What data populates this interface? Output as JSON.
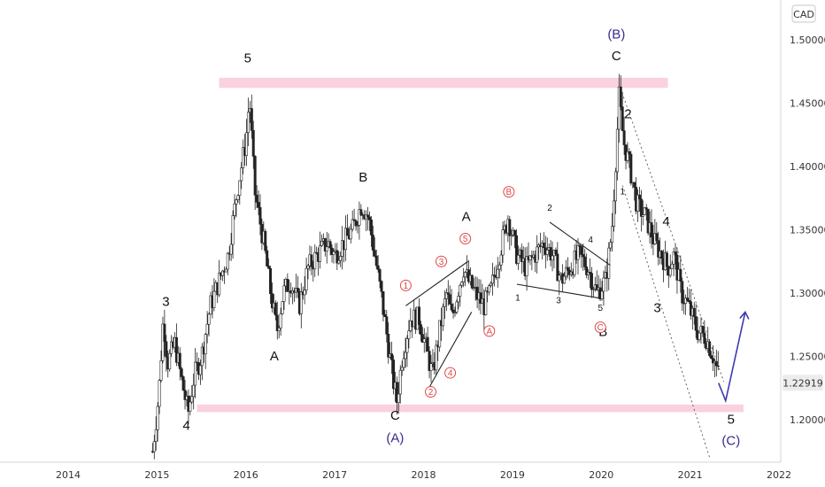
{
  "chart_data": {
    "type": "candlestick",
    "currency": "CAD",
    "last_price": "1.22919",
    "x_ticks": [
      "2014",
      "2015",
      "2016",
      "2017",
      "2018",
      "2019",
      "2020",
      "2021",
      "2022"
    ],
    "y_ticks": [
      "1.20000",
      "1.25000",
      "1.30000",
      "1.35000",
      "1.40000",
      "1.45000",
      "1.50000"
    ],
    "ylim": [
      1.165,
      1.525
    ],
    "zones": [
      {
        "from": 2015.7,
        "to": 2020.75,
        "low": 1.462,
        "high": 1.47
      },
      {
        "from": 2015.45,
        "to": 2021.6,
        "low": 1.206,
        "high": 1.212
      }
    ],
    "price_path": [
      [
        2014.95,
        1.175
      ],
      [
        2015.02,
        1.22
      ],
      [
        2015.07,
        1.28
      ],
      [
        2015.12,
        1.245
      ],
      [
        2015.2,
        1.26
      ],
      [
        2015.28,
        1.23
      ],
      [
        2015.35,
        1.205
      ],
      [
        2015.42,
        1.235
      ],
      [
        2015.5,
        1.25
      ],
      [
        2015.6,
        1.29
      ],
      [
        2015.7,
        1.31
      ],
      [
        2015.8,
        1.33
      ],
      [
        2015.9,
        1.38
      ],
      [
        2016.0,
        1.42
      ],
      [
        2016.04,
        1.455
      ],
      [
        2016.1,
        1.38
      ],
      [
        2016.2,
        1.34
      ],
      [
        2016.28,
        1.3
      ],
      [
        2016.35,
        1.27
      ],
      [
        2016.42,
        1.3
      ],
      [
        2016.5,
        1.31
      ],
      [
        2016.6,
        1.29
      ],
      [
        2016.7,
        1.32
      ],
      [
        2016.8,
        1.33
      ],
      [
        2016.92,
        1.34
      ],
      [
        2017.0,
        1.33
      ],
      [
        2017.1,
        1.34
      ],
      [
        2017.2,
        1.35
      ],
      [
        2017.3,
        1.37
      ],
      [
        2017.38,
        1.36
      ],
      [
        2017.45,
        1.33
      ],
      [
        2017.52,
        1.3
      ],
      [
        2017.6,
        1.26
      ],
      [
        2017.66,
        1.23
      ],
      [
        2017.7,
        1.215
      ],
      [
        2017.76,
        1.25
      ],
      [
        2017.85,
        1.28
      ],
      [
        2017.95,
        1.28
      ],
      [
        2018.05,
        1.25
      ],
      [
        2018.1,
        1.235
      ],
      [
        2018.18,
        1.27
      ],
      [
        2018.26,
        1.3
      ],
      [
        2018.32,
        1.28
      ],
      [
        2018.38,
        1.3
      ],
      [
        2018.45,
        1.32
      ],
      [
        2018.5,
        1.31
      ],
      [
        2018.58,
        1.3
      ],
      [
        2018.68,
        1.29
      ],
      [
        2018.75,
        1.3
      ],
      [
        2018.85,
        1.33
      ],
      [
        2018.95,
        1.36
      ],
      [
        2019.05,
        1.33
      ],
      [
        2019.15,
        1.32
      ],
      [
        2019.25,
        1.33
      ],
      [
        2019.35,
        1.34
      ],
      [
        2019.45,
        1.33
      ],
      [
        2019.55,
        1.31
      ],
      [
        2019.65,
        1.32
      ],
      [
        2019.75,
        1.33
      ],
      [
        2019.85,
        1.32
      ],
      [
        2019.95,
        1.3
      ],
      [
        2020.05,
        1.31
      ],
      [
        2020.12,
        1.35
      ],
      [
        2020.2,
        1.455
      ],
      [
        2020.25,
        1.42
      ],
      [
        2020.32,
        1.4
      ],
      [
        2020.4,
        1.37
      ],
      [
        2020.5,
        1.36
      ],
      [
        2020.6,
        1.34
      ],
      [
        2020.68,
        1.33
      ],
      [
        2020.75,
        1.32
      ],
      [
        2020.82,
        1.33
      ],
      [
        2020.9,
        1.3
      ],
      [
        2020.98,
        1.29
      ],
      [
        2021.08,
        1.27
      ],
      [
        2021.18,
        1.265
      ],
      [
        2021.26,
        1.25
      ],
      [
        2021.32,
        1.235
      ]
    ],
    "projection": [
      [
        2021.32,
        1.229
      ],
      [
        2021.4,
        1.215
      ],
      [
        2021.62,
        1.285
      ]
    ],
    "wave_labels": [
      {
        "text": "5",
        "x": 2016.02,
        "y": 1.482,
        "style": "wave"
      },
      {
        "text": "3",
        "x": 2015.1,
        "y": 1.29,
        "style": "wave"
      },
      {
        "text": "4",
        "x": 2015.33,
        "y": 1.192,
        "style": "wave"
      },
      {
        "text": "A",
        "x": 2016.32,
        "y": 1.247,
        "style": "wave"
      },
      {
        "text": "B",
        "x": 2017.32,
        "y": 1.388,
        "style": "wave"
      },
      {
        "text": "C",
        "x": 2017.68,
        "y": 1.2,
        "style": "wave"
      },
      {
        "text": "(A)",
        "x": 2017.68,
        "y": 1.182,
        "style": "wavepurple"
      },
      {
        "text": "A",
        "x": 2018.48,
        "y": 1.357,
        "style": "wave"
      },
      {
        "text": "B",
        "x": 2020.02,
        "y": 1.266,
        "style": "wave"
      },
      {
        "text": "(B)",
        "x": 2020.17,
        "y": 1.501,
        "style": "wavepurple"
      },
      {
        "text": "C",
        "x": 2020.17,
        "y": 1.484,
        "style": "wave"
      },
      {
        "text": "2",
        "x": 2020.3,
        "y": 1.438,
        "style": "wave"
      },
      {
        "text": "4",
        "x": 2020.73,
        "y": 1.353,
        "style": "wave"
      },
      {
        "text": "3",
        "x": 2020.63,
        "y": 1.285,
        "style": "wave"
      },
      {
        "text": "5",
        "x": 2021.46,
        "y": 1.197,
        "style": "wave"
      },
      {
        "text": "(C)",
        "x": 2021.46,
        "y": 1.18,
        "style": "wavepurple"
      },
      {
        "text": "1",
        "x": 2019.06,
        "y": 1.294,
        "style": "wavesm"
      },
      {
        "text": "2",
        "x": 2019.42,
        "y": 1.365,
        "style": "wavesm"
      },
      {
        "text": "3",
        "x": 2019.52,
        "y": 1.292,
        "style": "wavesm"
      },
      {
        "text": "4",
        "x": 2019.88,
        "y": 1.34,
        "style": "wavesm"
      },
      {
        "text": "5",
        "x": 2019.99,
        "y": 1.286,
        "style": "wavesm"
      },
      {
        "text": "1",
        "x": 2020.24,
        "y": 1.378,
        "style": "wavesm"
      }
    ],
    "circled_labels": [
      {
        "text": "1",
        "x": 2017.8,
        "y": 1.306
      },
      {
        "text": "2",
        "x": 2018.08,
        "y": 1.222
      },
      {
        "text": "3",
        "x": 2018.2,
        "y": 1.325
      },
      {
        "text": "4",
        "x": 2018.3,
        "y": 1.237
      },
      {
        "text": "5",
        "x": 2018.47,
        "y": 1.343
      },
      {
        "text": "A",
        "x": 2018.74,
        "y": 1.27
      },
      {
        "text": "B",
        "x": 2018.96,
        "y": 1.38
      },
      {
        "text": "C",
        "x": 2019.99,
        "y": 1.273
      }
    ],
    "trendlines": [
      {
        "from": [
          2017.8,
          1.29
        ],
        "to": [
          2018.5,
          1.325
        ],
        "dash": false
      },
      {
        "from": [
          2018.06,
          1.225
        ],
        "to": [
          2018.54,
          1.285
        ],
        "dash": false
      },
      {
        "from": [
          2019.05,
          1.307
        ],
        "to": [
          2019.98,
          1.296
        ],
        "dash": false
      },
      {
        "from": [
          2019.42,
          1.356
        ],
        "to": [
          2020.1,
          1.322
        ],
        "dash": false
      },
      {
        "from": [
          2020.25,
          1.455
        ],
        "to": [
          2021.38,
          1.23
        ],
        "dash": true
      },
      {
        "from": [
          2020.24,
          1.385
        ],
        "to": [
          2021.22,
          1.17
        ],
        "dash": true
      }
    ]
  }
}
